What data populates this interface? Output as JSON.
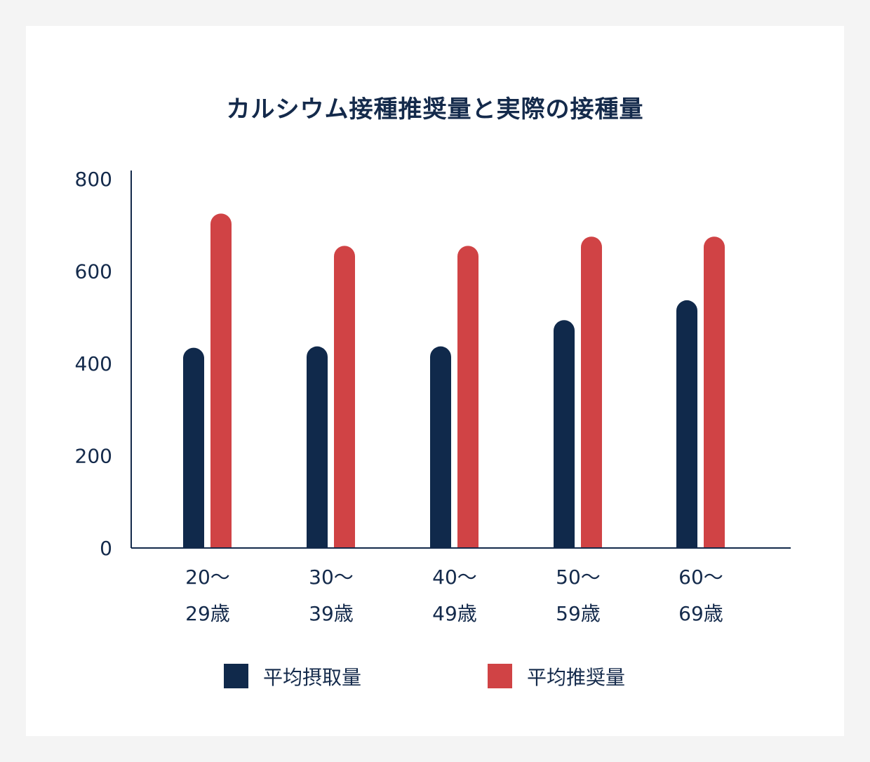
{
  "chart_data": {
    "type": "bar",
    "title": "カルシウム接種推奨量と実際の接種量",
    "categories": [
      {
        "line1": "20～",
        "line2": "29歳"
      },
      {
        "line1": "30～",
        "line2": "39歳"
      },
      {
        "line1": "40～",
        "line2": "49歳"
      },
      {
        "line1": "50～",
        "line2": "59歳"
      },
      {
        "line1": "60～",
        "line2": "69歳"
      }
    ],
    "series": [
      {
        "name": "平均摂取量",
        "color": "#10294b",
        "values": [
          434,
          437,
          437,
          494,
          537
        ]
      },
      {
        "name": "平均推奨量",
        "color": "#d04345",
        "values": [
          725,
          655,
          655,
          675,
          675
        ]
      }
    ],
    "ylim": [
      0,
      800
    ],
    "yticks": [
      0,
      200,
      400,
      600,
      800
    ],
    "grid": false,
    "legend": "bottom",
    "axis_color": "#142a4b"
  }
}
